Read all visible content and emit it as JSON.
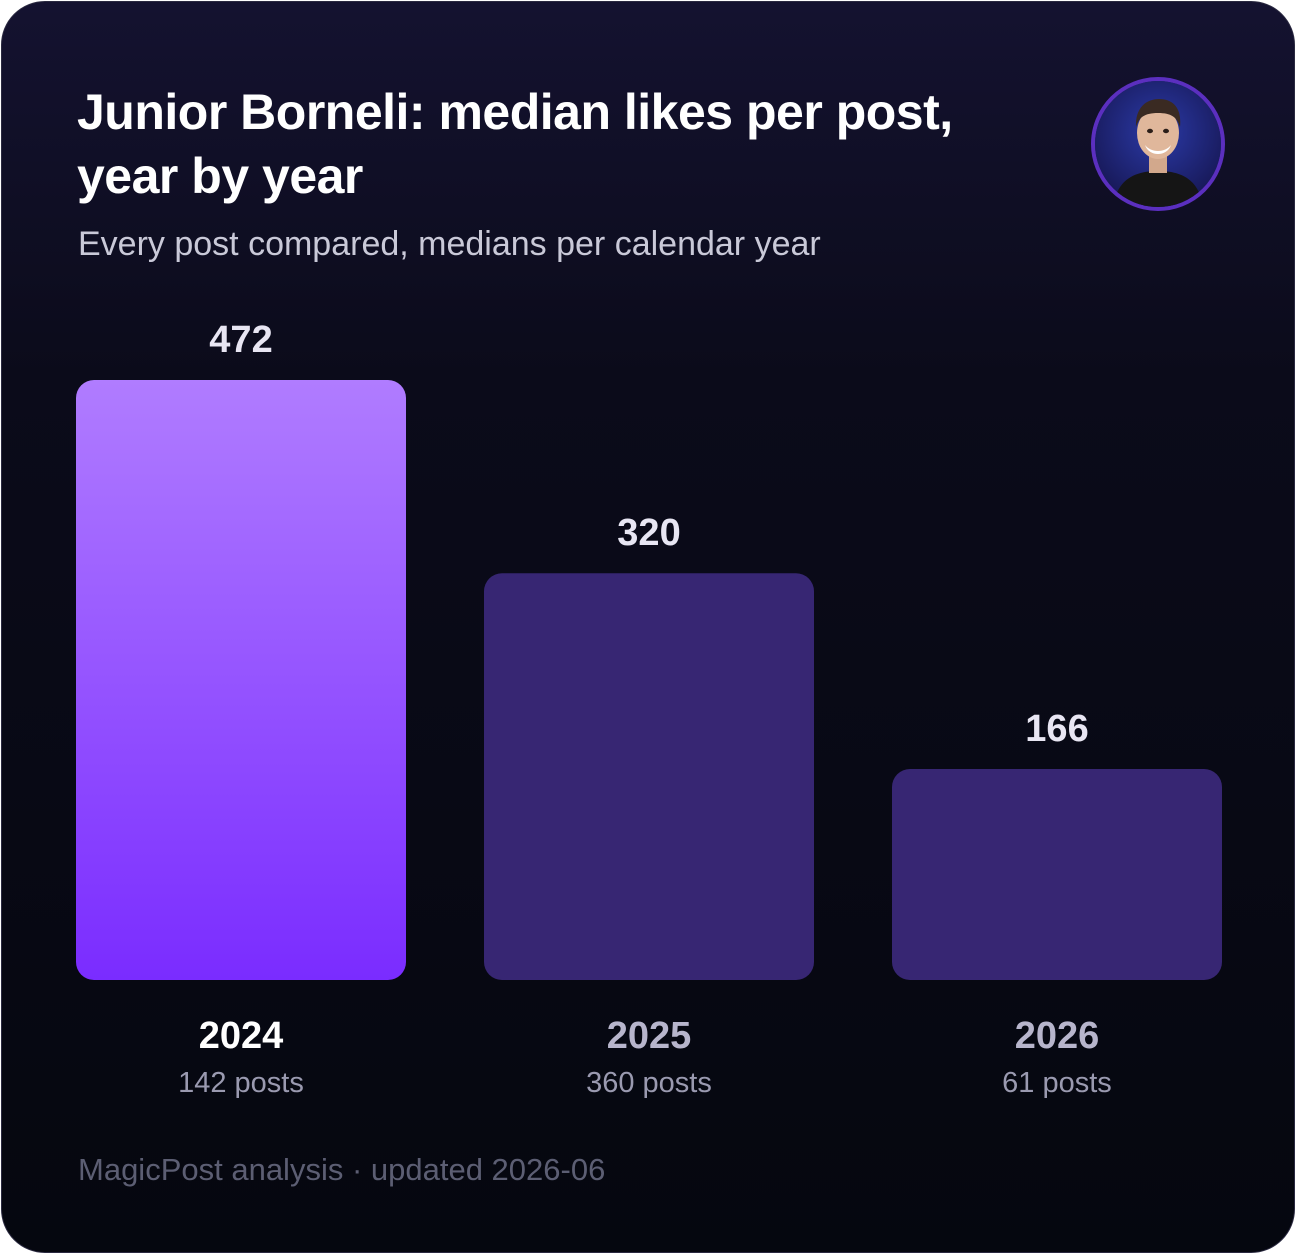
{
  "header": {
    "title": "Junior Borneli: median likes per post, year by year",
    "subtitle": "Every post compared, medians per calendar year"
  },
  "footer": {
    "text": "MagicPost analysis · updated 2026-06"
  },
  "colors": {
    "highlight_top": "#b07cff",
    "highlight_bottom": "#7a2cff",
    "muted_bar": "#372673",
    "value_label": "#e8e6f3",
    "year_highlight": "#ffffff",
    "year_muted": "#b7b5cc",
    "posts_label": "#9a9ab0"
  },
  "chart_data": {
    "type": "bar",
    "title": "Junior Borneli: median likes per post, year by year",
    "subtitle": "Every post compared, medians per calendar year",
    "xlabel": "",
    "ylabel": "",
    "categories": [
      "2024",
      "2025",
      "2026"
    ],
    "values": [
      472,
      320,
      166
    ],
    "value_labels": [
      "472",
      "320",
      "166"
    ],
    "post_counts": [
      "142 posts",
      "360 posts",
      "61 posts"
    ],
    "highlighted": "2024",
    "ylim": [
      0,
      472
    ],
    "grid": false,
    "legend": "none"
  }
}
